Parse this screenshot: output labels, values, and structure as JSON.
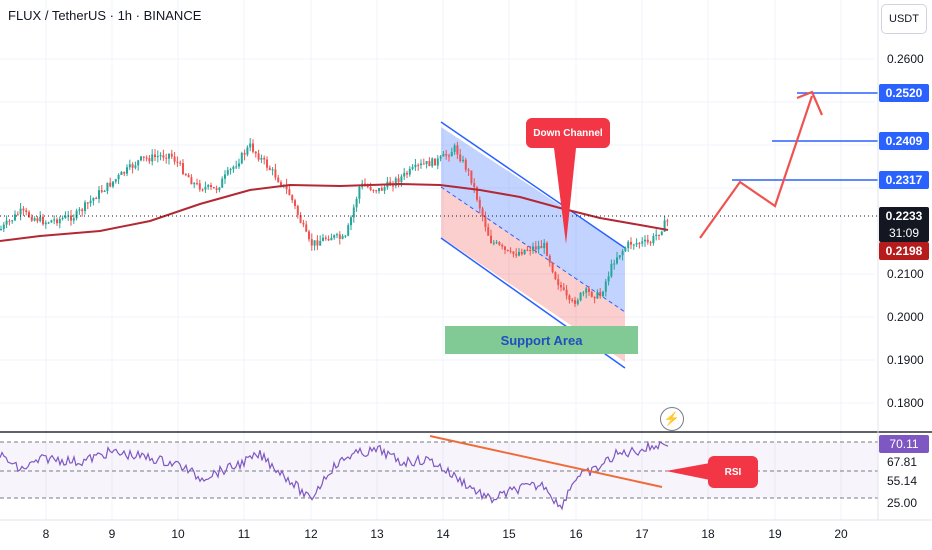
{
  "header": {
    "symbol_line": "FLUX / TetherUS · 1h · BINANCE"
  },
  "currency": "USDT",
  "price_axis": [
    "0.2600",
    "0.2100",
    "0.2000",
    "0.1900",
    "0.1800"
  ],
  "price_badges": {
    "target_3": {
      "label": "0.2520",
      "color": "#2962ff"
    },
    "target_2": {
      "label": "0.2409",
      "color": "#2962ff"
    },
    "target_1": {
      "label": "0.2317",
      "color": "#2962ff"
    },
    "last_price": {
      "label": "0.2233",
      "color": "#131722"
    },
    "countdown": {
      "label": "31:09",
      "color": "#131722"
    },
    "ma_value": {
      "label": "0.2198",
      "color": "#b71c1c"
    }
  },
  "annotations": {
    "down_channel": "Down Channel",
    "support_area": "Support Area",
    "rsi": "RSI"
  },
  "rsi_axis": {
    "current": "70.11",
    "levels": [
      "67.81",
      "55.14",
      "25.00"
    ]
  },
  "time_axis": [
    "8",
    "9",
    "10",
    "11",
    "12",
    "13",
    "14",
    "15",
    "16",
    "17",
    "18",
    "19",
    "20"
  ],
  "colors": {
    "up": "#26a69a",
    "down": "#ef5350",
    "ma": "#b22833",
    "channel": "#2962ff",
    "arrow": "#ef5350",
    "rsi_line": "#7e57c2"
  },
  "icons": {
    "replay": "lightning-icon"
  }
}
